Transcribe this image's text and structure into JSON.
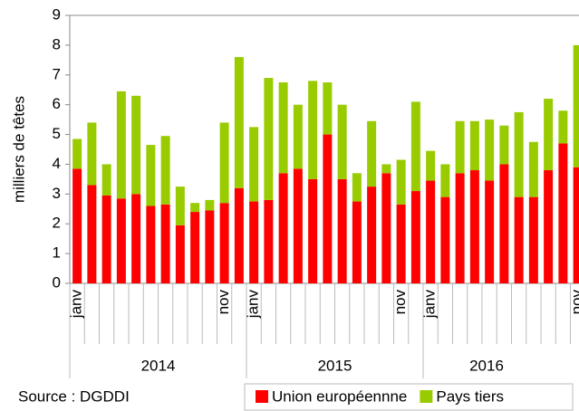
{
  "chart_data": {
    "type": "stacked-bar",
    "y_label": "milliers de têtes",
    "source": "Source : DGDDI",
    "categories": [
      "janv",
      null,
      null,
      null,
      null,
      null,
      null,
      null,
      null,
      null,
      "nov",
      null,
      "janv",
      null,
      null,
      null,
      null,
      null,
      null,
      null,
      null,
      null,
      "nov",
      null,
      "janv",
      null,
      null,
      null,
      null,
      null,
      null,
      null,
      null,
      null,
      "nov"
    ],
    "groups": [
      {
        "label": "2014",
        "start": 0,
        "count": 12
      },
      {
        "label": "2015",
        "start": 12,
        "count": 12
      },
      {
        "label": "2016",
        "start": 24,
        "count": 11
      }
    ],
    "series": [
      {
        "name": "Union européennne",
        "color": "#ff0000",
        "values": [
          3.85,
          3.3,
          2.95,
          2.85,
          3.0,
          2.6,
          2.65,
          1.95,
          2.4,
          2.45,
          2.7,
          3.2,
          2.75,
          2.8,
          3.7,
          3.85,
          3.5,
          5.0,
          3.5,
          2.75,
          3.25,
          3.7,
          2.65,
          3.1,
          3.45,
          2.9,
          3.7,
          3.8,
          3.45,
          4.0,
          2.9,
          2.9,
          3.8,
          4.7,
          3.9
        ]
      },
      {
        "name": "Pays tiers",
        "color": "#99cc00",
        "values": [
          1.0,
          2.1,
          1.05,
          3.6,
          3.3,
          2.05,
          2.3,
          1.3,
          0.3,
          0.35,
          2.7,
          4.4,
          2.5,
          4.1,
          3.05,
          2.15,
          3.3,
          1.75,
          2.5,
          0.95,
          2.2,
          0.3,
          1.5,
          3.0,
          1.0,
          1.1,
          1.75,
          1.65,
          2.05,
          1.3,
          2.85,
          1.85,
          2.4,
          1.1,
          4.1
        ]
      }
    ],
    "ylim": [
      0,
      9
    ],
    "yticks": [
      0,
      1,
      2,
      3,
      4,
      5,
      6,
      7,
      8,
      9
    ]
  }
}
